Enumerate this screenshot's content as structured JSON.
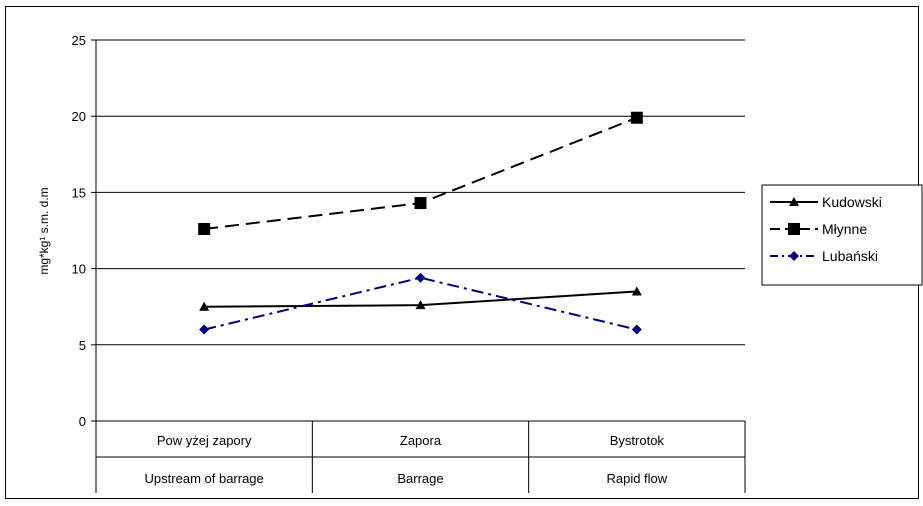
{
  "chart_data": {
    "type": "line",
    "title": "",
    "ylabel": "mg*kg¹ s.m. d.m",
    "ylim": [
      0,
      25
    ],
    "yticks": [
      0,
      5,
      10,
      15,
      20,
      25
    ],
    "categories": [
      [
        "Pow yżej zapory",
        "Upstream of barrage"
      ],
      [
        "Zapora",
        "Barrage"
      ],
      [
        "Bystrotok",
        "Rapid flow"
      ]
    ],
    "series": [
      {
        "name": "Kudowski",
        "values": [
          7.5,
          7.6,
          8.5
        ],
        "color": "#000000",
        "dash": "solid",
        "marker": "triangle"
      },
      {
        "name": "Młynne",
        "values": [
          12.6,
          14.3,
          19.9
        ],
        "color": "#000000",
        "dash": "dashed",
        "marker": "square"
      },
      {
        "name": "Lubański",
        "values": [
          6.0,
          9.4,
          6.0
        ],
        "color": "#000080",
        "dash": "dashdot",
        "marker": "diamond"
      }
    ],
    "grid": true,
    "legend": "right"
  }
}
